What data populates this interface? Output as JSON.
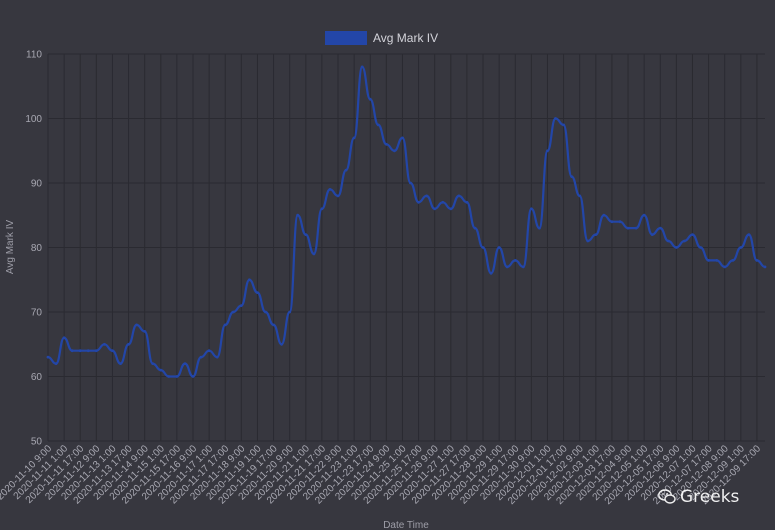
{
  "colors": {
    "background": "#37373f",
    "series": "#2346a8",
    "grid": "#2a2a31",
    "text": "#a8a8b2"
  },
  "watermark": {
    "text": "Greeks",
    "icon": "wechat-icon"
  },
  "chart_data": {
    "type": "line",
    "xlabel": "Date Time",
    "ylabel": "Avg Mark IV",
    "ylim": [
      50,
      110
    ],
    "yticks": [
      50,
      60,
      70,
      80,
      90,
      100,
      110
    ],
    "grid": true,
    "legend_position": "top-center",
    "xticks": [
      "2020-11-10 9:00",
      "2020-11-11 1:00",
      "2020-11-11 17:00",
      "2020-11-12 9:00",
      "2020-11-13 1:00",
      "2020-11-13 17:00",
      "2020-11-14 9:00",
      "2020-11-15 1:00",
      "2020-11-15 17:00",
      "2020-11-16 9:00",
      "2020-11-17 1:00",
      "2020-11-17 17:00",
      "2020-11-18 9:00",
      "2020-11-19 1:00",
      "2020-11-19 17:00",
      "2020-11-20 9:00",
      "2020-11-21 1:00",
      "2020-11-21 17:00",
      "2020-11-22 9:00",
      "2020-11-23 1:00",
      "2020-11-23 17:00",
      "2020-11-24 9:00",
      "2020-11-25 1:00",
      "2020-11-25 17:00",
      "2020-11-26 9:00",
      "2020-11-27 1:00",
      "2020-11-27 17:00",
      "2020-11-28 9:00",
      "2020-11-29 1:00",
      "2020-11-29 17:00",
      "2020-11-30 9:00",
      "2020-12-01 1:00",
      "2020-12-01 17:00",
      "2020-12-02 9:00",
      "2020-12-03 1:00",
      "2020-12-03 17:00",
      "2020-12-04 9:00",
      "2020-12-05 1:00",
      "2020-12-05 17:00",
      "2020-12-06 9:00",
      "2020-12-07 1:00",
      "2020-12-07 17:00",
      "2020-12-08 9:00",
      "2020-12-09 1:00",
      "2020-12-09 17:00"
    ],
    "series": [
      {
        "name": "Avg Mark IV",
        "color": "#2346a8",
        "x": [
          "2020-11-10 9:00",
          "2020-11-10 17:00",
          "2020-11-11 1:00",
          "2020-11-11 9:00",
          "2020-11-11 17:00",
          "2020-11-12 1:00",
          "2020-11-12 9:00",
          "2020-11-12 17:00",
          "2020-11-13 1:00",
          "2020-11-13 9:00",
          "2020-11-13 17:00",
          "2020-11-14 1:00",
          "2020-11-14 9:00",
          "2020-11-14 17:00",
          "2020-11-15 1:00",
          "2020-11-15 9:00",
          "2020-11-15 17:00",
          "2020-11-16 1:00",
          "2020-11-16 9:00",
          "2020-11-16 17:00",
          "2020-11-17 1:00",
          "2020-11-17 9:00",
          "2020-11-17 17:00",
          "2020-11-18 1:00",
          "2020-11-18 9:00",
          "2020-11-18 17:00",
          "2020-11-19 1:00",
          "2020-11-19 9:00",
          "2020-11-19 17:00",
          "2020-11-20 1:00",
          "2020-11-20 9:00",
          "2020-11-20 17:00",
          "2020-11-21 1:00",
          "2020-11-21 9:00",
          "2020-11-21 17:00",
          "2020-11-22 1:00",
          "2020-11-22 9:00",
          "2020-11-22 17:00",
          "2020-11-23 1:00",
          "2020-11-23 9:00",
          "2020-11-23 17:00",
          "2020-11-24 1:00",
          "2020-11-24 9:00",
          "2020-11-24 17:00",
          "2020-11-25 1:00",
          "2020-11-25 9:00",
          "2020-11-25 17:00",
          "2020-11-26 1:00",
          "2020-11-26 9:00",
          "2020-11-26 17:00",
          "2020-11-27 1:00",
          "2020-11-27 9:00",
          "2020-11-27 17:00",
          "2020-11-28 1:00",
          "2020-11-28 9:00",
          "2020-11-28 17:00",
          "2020-11-29 1:00",
          "2020-11-29 9:00",
          "2020-11-29 17:00",
          "2020-11-30 1:00",
          "2020-11-30 9:00",
          "2020-11-30 17:00",
          "2020-12-01 1:00",
          "2020-12-01 9:00",
          "2020-12-01 17:00",
          "2020-12-02 1:00",
          "2020-12-02 9:00",
          "2020-12-02 17:00",
          "2020-12-03 1:00",
          "2020-12-03 9:00",
          "2020-12-03 17:00",
          "2020-12-04 1:00",
          "2020-12-04 9:00",
          "2020-12-04 17:00",
          "2020-12-05 1:00",
          "2020-12-05 9:00",
          "2020-12-05 17:00",
          "2020-12-06 1:00",
          "2020-12-06 9:00",
          "2020-12-06 17:00",
          "2020-12-07 1:00",
          "2020-12-07 9:00",
          "2020-12-07 17:00",
          "2020-12-08 1:00",
          "2020-12-08 9:00",
          "2020-12-08 17:00",
          "2020-12-09 1:00",
          "2020-12-09 9:00",
          "2020-12-09 17:00",
          "2020-12-10 1:00"
        ],
        "values": [
          63,
          62,
          66,
          64,
          64,
          64,
          64,
          65,
          64,
          62,
          65,
          68,
          67,
          62,
          61,
          60,
          60,
          62,
          60,
          63,
          64,
          63,
          68,
          70,
          71,
          75,
          73,
          70,
          68,
          65,
          70,
          85,
          82,
          79,
          86,
          89,
          88,
          92,
          97,
          108,
          103,
          99,
          96,
          95,
          97,
          90,
          87,
          88,
          86,
          87,
          86,
          88,
          87,
          83,
          80,
          76,
          80,
          77,
          78,
          77,
          86,
          83,
          95,
          100,
          99,
          91,
          88,
          81,
          82,
          85,
          84,
          84,
          83,
          83,
          85,
          82,
          83,
          81,
          80,
          81,
          82,
          80,
          78,
          78,
          77,
          78,
          80,
          82,
          78,
          77
        ]
      }
    ]
  }
}
